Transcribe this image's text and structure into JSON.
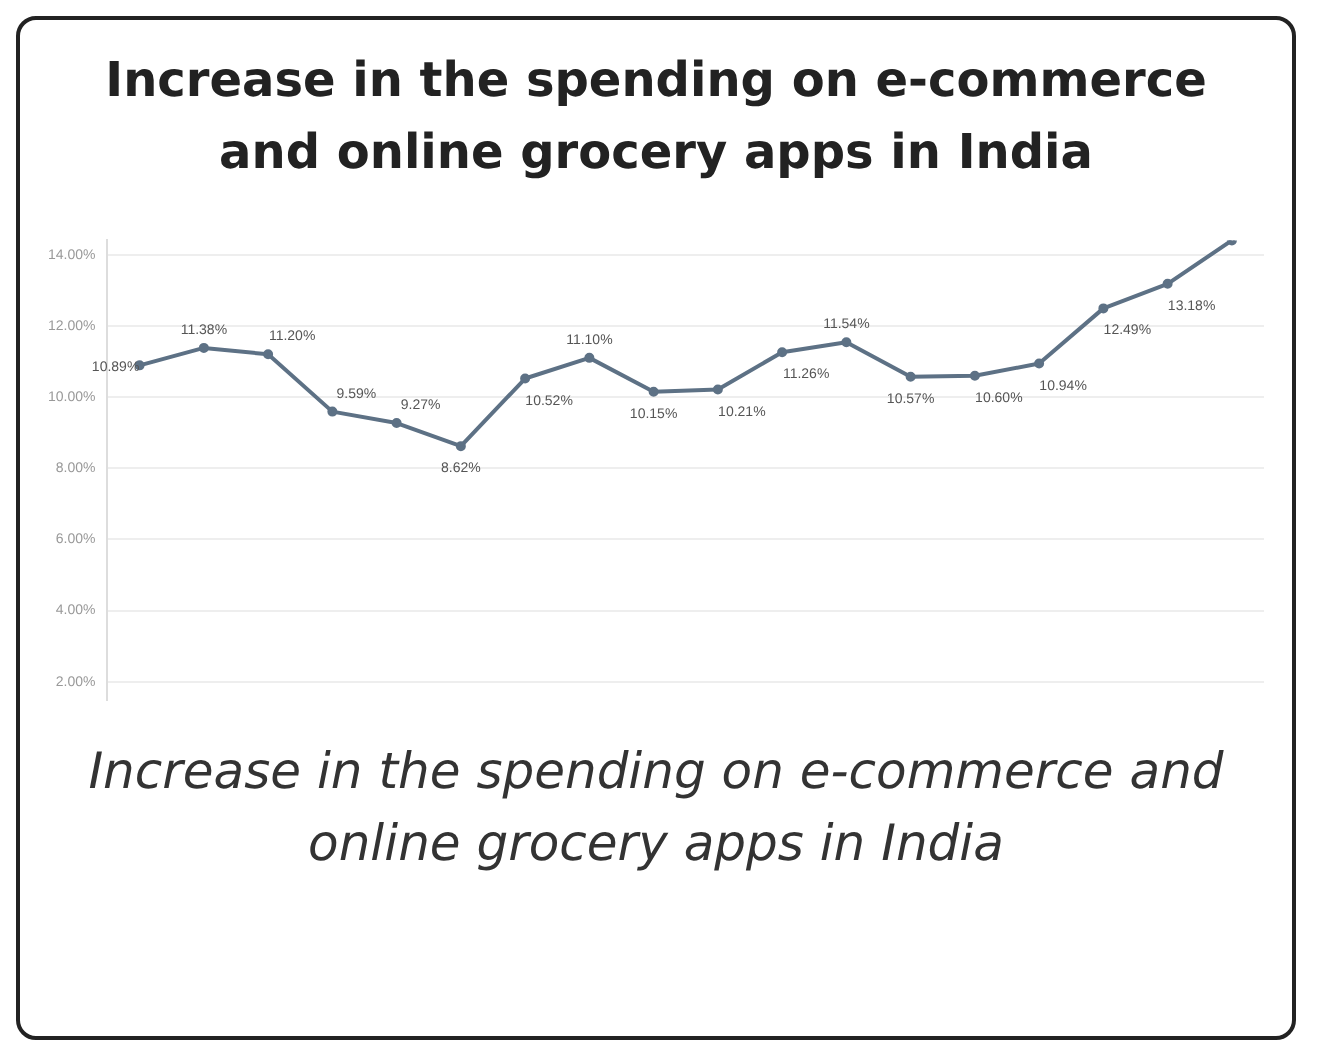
{
  "chart_data": {
    "type": "line",
    "title": "Increase in the spending on e-commerce and online grocery apps in India",
    "categories": [
      null,
      null,
      null,
      null,
      null,
      null,
      null,
      null,
      null,
      null,
      null,
      null,
      null,
      null,
      null,
      null,
      null,
      null
    ],
    "series": [
      {
        "color": "#5d7185",
        "values": [
          10.89,
          11.38,
          11.2,
          9.59,
          9.27,
          8.62,
          10.52,
          11.1,
          10.15,
          10.21,
          11.26,
          11.54,
          10.57,
          10.6,
          10.94,
          12.49,
          13.18,
          14.4
        ]
      }
    ],
    "value_labels": [
      "10.89%",
      "11.38%",
      "11.20%",
      "9.59%",
      "9.27%",
      "8.62%",
      "10.52%",
      "11.10%",
      "10.15%",
      "10.21%",
      "11.26%",
      "11.54%",
      "10.57%",
      "10.60%",
      "10.94%",
      "12.49%",
      "13.18%",
      null
    ],
    "ylim": [
      1.5,
      14.4
    ],
    "yticks": [
      {
        "value": 2,
        "label": "2.00%"
      },
      {
        "value": 4,
        "label": "4.00%"
      },
      {
        "value": 6,
        "label": "6.00%"
      },
      {
        "value": 8,
        "label": "8.00%"
      },
      {
        "value": 10,
        "label": "10.00%"
      },
      {
        "value": 12,
        "label": "12.00%"
      },
      {
        "value": 14,
        "label": "14.00%"
      }
    ],
    "grid": "y",
    "marker": "circle",
    "legend": false,
    "annotations": [
      "Increase in the spending on e-commerce and online grocery apps in India"
    ]
  }
}
